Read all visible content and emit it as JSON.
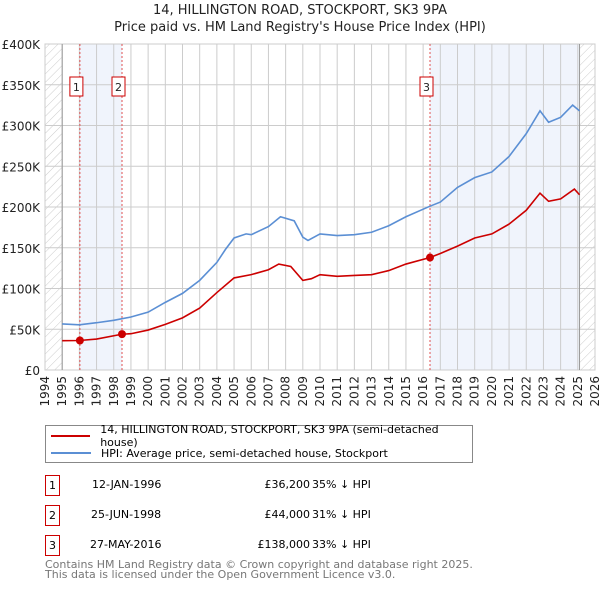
{
  "chart_data": {
    "type": "line",
    "title": "14, HILLINGTON ROAD, STOCKPORT, SK3 9PA",
    "subtitle": "Price paid vs. HM Land Registry's House Price Index (HPI)",
    "xlim": [
      1994,
      2026
    ],
    "ylim": [
      0,
      400000
    ],
    "x_ticks": [
      "1994",
      "1995",
      "1996",
      "1997",
      "1998",
      "1999",
      "2000",
      "2001",
      "2002",
      "2003",
      "2004",
      "2005",
      "2006",
      "2007",
      "2008",
      "2009",
      "2010",
      "2011",
      "2012",
      "2013",
      "2014",
      "2015",
      "2016",
      "2017",
      "2018",
      "2019",
      "2020",
      "2021",
      "2022",
      "2023",
      "2024",
      "2025",
      "2026"
    ],
    "y_ticks": [
      {
        "v": 0,
        "l": "£0"
      },
      {
        "v": 50000,
        "l": "£50K"
      },
      {
        "v": 100000,
        "l": "£100K"
      },
      {
        "v": 150000,
        "l": "£150K"
      },
      {
        "v": 200000,
        "l": "£200K"
      },
      {
        "v": 250000,
        "l": "£250K"
      },
      {
        "v": 300000,
        "l": "£300K"
      },
      {
        "v": 350000,
        "l": "£350K"
      },
      {
        "v": 400000,
        "l": "£400K"
      }
    ],
    "grid": true,
    "series": [
      {
        "name": "14, HILLINGTON ROAD, STOCKPORT, SK3 9PA (semi-detached house)",
        "color": "#cc0000",
        "points": [
          [
            1995,
            36000
          ],
          [
            1996,
            36200
          ],
          [
            1997,
            38000
          ],
          [
            1998.5,
            44000
          ],
          [
            1999,
            44500
          ],
          [
            2000,
            49000
          ],
          [
            2001,
            56000
          ],
          [
            2002,
            64000
          ],
          [
            2003,
            76000
          ],
          [
            2004,
            95000
          ],
          [
            2005,
            113000
          ],
          [
            2006,
            117000
          ],
          [
            2007,
            123000
          ],
          [
            2007.6,
            130000
          ],
          [
            2008.3,
            127000
          ],
          [
            2009,
            110000
          ],
          [
            2009.5,
            112000
          ],
          [
            2010,
            117000
          ],
          [
            2011,
            115000
          ],
          [
            2012,
            116000
          ],
          [
            2013,
            117000
          ],
          [
            2014,
            122000
          ],
          [
            2015,
            130000
          ],
          [
            2016.4,
            138000
          ],
          [
            2017,
            143000
          ],
          [
            2018,
            152000
          ],
          [
            2019,
            162000
          ],
          [
            2020,
            167000
          ],
          [
            2021,
            179000
          ],
          [
            2022,
            196000
          ],
          [
            2022.8,
            217000
          ],
          [
            2023.3,
            207000
          ],
          [
            2024,
            210000
          ],
          [
            2024.8,
            222000
          ],
          [
            2025.1,
            215000
          ]
        ]
      },
      {
        "name": "HPI: Average price, semi-detached house, Stockport",
        "color": "#5b8fd4",
        "points": [
          [
            1995,
            56500
          ],
          [
            1996,
            55500
          ],
          [
            1997,
            58000
          ],
          [
            1998,
            61000
          ],
          [
            1999,
            65000
          ],
          [
            2000,
            71000
          ],
          [
            2001,
            83000
          ],
          [
            2002,
            94000
          ],
          [
            2003,
            110000
          ],
          [
            2004,
            132000
          ],
          [
            2004.5,
            148000
          ],
          [
            2005,
            162000
          ],
          [
            2005.7,
            167000
          ],
          [
            2006,
            166000
          ],
          [
            2007,
            176000
          ],
          [
            2007.7,
            188000
          ],
          [
            2008.5,
            183000
          ],
          [
            2009,
            163000
          ],
          [
            2009.3,
            159000
          ],
          [
            2010,
            167000
          ],
          [
            2011,
            165000
          ],
          [
            2012,
            166000
          ],
          [
            2013,
            169000
          ],
          [
            2014,
            177000
          ],
          [
            2015,
            188000
          ],
          [
            2016.4,
            201000
          ],
          [
            2017,
            206000
          ],
          [
            2018,
            224000
          ],
          [
            2019,
            236000
          ],
          [
            2020,
            243000
          ],
          [
            2021,
            262000
          ],
          [
            2022,
            290000
          ],
          [
            2022.8,
            318000
          ],
          [
            2023.3,
            304000
          ],
          [
            2024,
            310000
          ],
          [
            2024.7,
            325000
          ],
          [
            2025.1,
            318000
          ]
        ]
      }
    ],
    "transactions": [
      {
        "id": "1",
        "x": 1996.03,
        "price": 36200,
        "date": "12-JAN-1996",
        "price_label": "£36,200",
        "hpi": "35% ↓ HPI"
      },
      {
        "id": "2",
        "x": 1998.48,
        "price": 44000,
        "date": "25-JUN-1998",
        "price_label": "£44,000",
        "hpi": "31% ↓ HPI"
      },
      {
        "id": "3",
        "x": 2016.4,
        "price": 138000,
        "date": "27-MAY-2016",
        "price_label": "£138,000",
        "hpi": "33% ↓ HPI"
      }
    ],
    "legend_placement": "below"
  },
  "footer": {
    "line1": "Contains HM Land Registry data © Crown copyright and database right 2025.",
    "line2": "This data is licensed under the Open Government Licence v3.0."
  }
}
